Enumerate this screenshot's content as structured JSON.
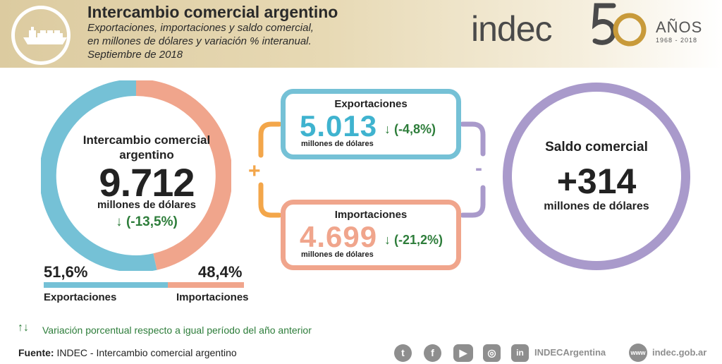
{
  "header": {
    "title": "Intercambio comercial argentino",
    "subtitle_1": "Exportaciones, importaciones y saldo comercial,",
    "subtitle_2": "en millones de dólares y variación % interanual.",
    "subtitle_3": "Septiembre de 2018",
    "logo_text": "indec",
    "logo_number": "50",
    "logo_anos": "AÑOS",
    "logo_years": "1968 - 2018"
  },
  "total": {
    "title": "Intercambio comercial argentino",
    "value": "9.712",
    "unit": "millones de dólares",
    "variation": "↓ (-13,5%)"
  },
  "share": {
    "export_pct": "51,6%",
    "import_pct": "48,4%",
    "export_label": "Exportaciones",
    "import_label": "Importaciones"
  },
  "exports": {
    "title": "Exportaciones",
    "value": "5.013",
    "unit": "millones de dólares",
    "variation": "↓ (-4,8%)"
  },
  "imports": {
    "title": "Importaciones",
    "value": "4.699",
    "unit": "millones de dólares",
    "variation": "↓ (-21,2%)"
  },
  "operators": {
    "plus": "+",
    "minus": "-"
  },
  "balance": {
    "title": "Saldo comercial",
    "value": "+314",
    "unit": "millones de dólares"
  },
  "legend": {
    "arrows": "↑↓",
    "text": "Variación porcentual respecto a igual período del año anterior"
  },
  "source": {
    "label": "Fuente:",
    "text": "INDEC - Intercambio comercial argentino"
  },
  "social": {
    "icons": [
      "twitter-icon",
      "facebook-icon",
      "youtube-icon",
      "instagram-icon",
      "linkedin-icon"
    ],
    "handle": "INDECArgentina",
    "web_icon_text": "www",
    "website": "indec.gob.ar"
  },
  "colors": {
    "exports": "#75c1d6",
    "imports": "#f0a58c",
    "balance": "#a99acb",
    "plus": "#f3a64a",
    "variation": "#2d7d3a",
    "header": "#dccba0"
  }
}
